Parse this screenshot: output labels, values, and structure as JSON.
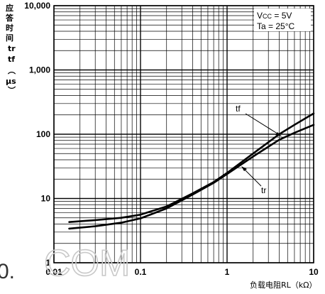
{
  "chart_data": {
    "type": "line",
    "title": "",
    "xlabel": "负载电阻RL（kΩ）",
    "ylabel": "应答时间tr tf（μs）",
    "xscale": "log",
    "yscale": "log",
    "xlim": [
      0.01,
      10
    ],
    "ylim": [
      1,
      10000
    ],
    "grid": true,
    "x_ticks": [
      "0.01",
      "0.1",
      "1",
      "10"
    ],
    "y_ticks": [
      "1",
      "10",
      "100",
      "1,000",
      "10,000"
    ],
    "conditions": [
      "Vcc = 5V",
      "Ta = 25°C"
    ],
    "series": [
      {
        "name": "tf",
        "x": [
          0.015,
          0.03,
          0.06,
          0.1,
          0.2,
          0.4,
          0.7,
          1,
          2,
          4,
          6,
          10
        ],
        "y": [
          4.3,
          4.6,
          5.0,
          5.6,
          7.5,
          12,
          18,
          25,
          50,
          100,
          140,
          210
        ]
      },
      {
        "name": "tr",
        "x": [
          0.015,
          0.03,
          0.06,
          0.1,
          0.2,
          0.4,
          0.7,
          1,
          2,
          4,
          6,
          10
        ],
        "y": [
          3.4,
          3.7,
          4.2,
          4.9,
          7.0,
          11.5,
          17.5,
          24,
          45,
          82,
          105,
          140
        ]
      }
    ]
  },
  "watermark": {
    "text": "COM",
    "prefix": "0."
  }
}
